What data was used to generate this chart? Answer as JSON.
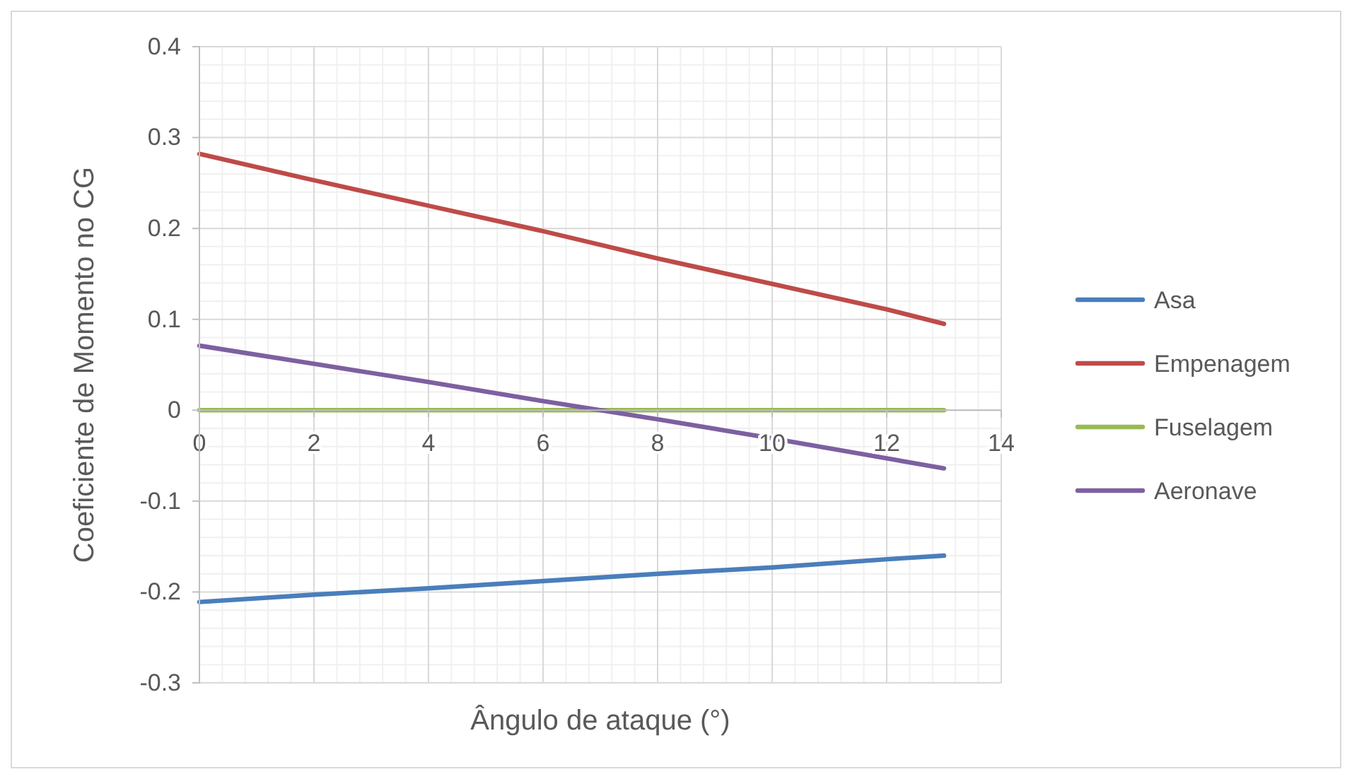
{
  "chart_data": {
    "type": "line",
    "xlabel": "Ângulo de ataque (°)",
    "ylabel": "Coeficiente de Momento no CG",
    "x": [
      0,
      2,
      4,
      6,
      8,
      10,
      12,
      13
    ],
    "series": [
      {
        "name": "Asa",
        "color": "#4a7ebb",
        "values": [
          -0.211,
          -0.203,
          -0.196,
          -0.188,
          -0.18,
          -0.173,
          -0.164,
          -0.16
        ]
      },
      {
        "name": "Empenagem",
        "color": "#be4b48",
        "values": [
          0.282,
          0.253,
          0.225,
          0.197,
          0.167,
          0.139,
          0.111,
          0.095
        ]
      },
      {
        "name": "Fuselagem",
        "color": "#98b954",
        "values": [
          0,
          0,
          0,
          0,
          0,
          0,
          0,
          0
        ]
      },
      {
        "name": "Aeronave",
        "color": "#7d60a0",
        "values": [
          0.071,
          0.051,
          0.031,
          0.01,
          -0.01,
          -0.031,
          -0.053,
          -0.064
        ]
      }
    ],
    "xlim": [
      0,
      14
    ],
    "xticks": [
      0,
      2,
      4,
      6,
      8,
      10,
      12,
      14
    ],
    "ylim": [
      -0.3,
      0.4
    ],
    "yticks": [
      {
        "value": -0.3,
        "label": "-0.3"
      },
      {
        "value": -0.2,
        "label": "-0.2"
      },
      {
        "value": -0.1,
        "label": "-0.1"
      },
      0,
      0.1,
      0.2,
      0.3,
      0.4
    ],
    "grid": true,
    "legend": "right",
    "marker": "none",
    "line_style": "solid"
  }
}
